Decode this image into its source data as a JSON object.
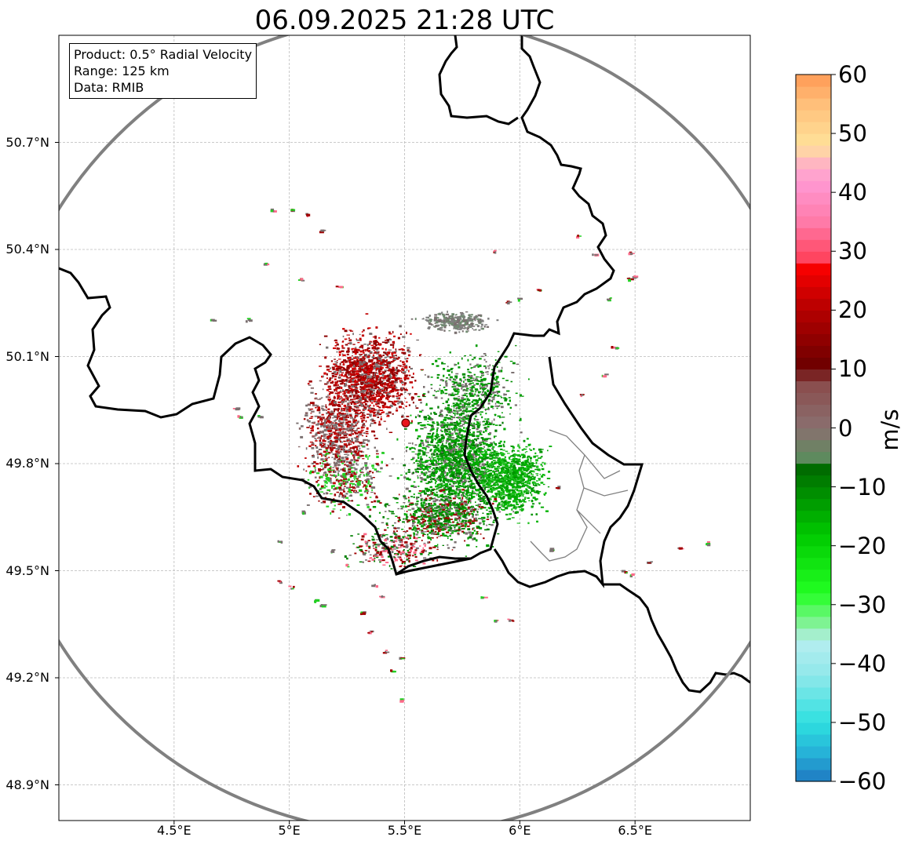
{
  "title": "06.09.2025 21:28 UTC",
  "info_box": {
    "product": "Product: 0.5° Radial Velocity",
    "range": "Range: 125 km",
    "data": "Data: RMIB"
  },
  "map": {
    "lon_range": [
      4.0,
      7.0
    ],
    "lat_range": [
      48.8,
      51.0
    ],
    "radar_site": {
      "lon": 5.505,
      "lat": 49.914
    },
    "range_km": 125,
    "y_ticks": [
      {
        "lat": 50.7,
        "label": "50.7°N"
      },
      {
        "lat": 50.4,
        "label": "50.4°N"
      },
      {
        "lat": 50.1,
        "label": "50.1°N"
      },
      {
        "lat": 49.8,
        "label": "49.8°N"
      },
      {
        "lat": 49.5,
        "label": "49.5°N"
      },
      {
        "lat": 49.2,
        "label": "49.2°N"
      },
      {
        "lat": 48.9,
        "label": "48.9°N"
      }
    ],
    "x_ticks": [
      {
        "lon": 4.5,
        "label": "4.5°E"
      },
      {
        "lon": 5.0,
        "label": "5°E"
      },
      {
        "lon": 5.5,
        "label": "5.5°E"
      },
      {
        "lon": 6.0,
        "label": "6°E"
      },
      {
        "lon": 6.5,
        "label": "6.5°E"
      }
    ],
    "grid": true,
    "colors": {
      "border": "#000000",
      "range_ring": "#808080",
      "grid": "#bbbbbb",
      "radar_site": "#e8141c"
    }
  },
  "colorbar": {
    "unit": "m/s",
    "min": -60,
    "max": 60,
    "ticks": [
      {
        "value": 60,
        "label": "60"
      },
      {
        "value": 50,
        "label": "50"
      },
      {
        "value": 40,
        "label": "40"
      },
      {
        "value": 30,
        "label": "30"
      },
      {
        "value": 20,
        "label": "20"
      },
      {
        "value": 10,
        "label": "10"
      },
      {
        "value": 0,
        "label": "0"
      },
      {
        "value": -10,
        "label": "−10"
      },
      {
        "value": -20,
        "label": "−20"
      },
      {
        "value": -30,
        "label": "−30"
      },
      {
        "value": -40,
        "label": "−40"
      },
      {
        "value": -50,
        "label": "−50"
      },
      {
        "value": -60,
        "label": "−60"
      }
    ],
    "stops": [
      {
        "value": -60,
        "color": "#1f78c1"
      },
      {
        "value": -55,
        "color": "#26b3d8"
      },
      {
        "value": -50,
        "color": "#2ee0e0"
      },
      {
        "value": -42,
        "color": "#8fe8ea"
      },
      {
        "value": -36,
        "color": "#b7eef0"
      },
      {
        "value": -34,
        "color": "#90f0a8"
      },
      {
        "value": -28,
        "color": "#22ff22"
      },
      {
        "value": -18,
        "color": "#00c800"
      },
      {
        "value": -6,
        "color": "#006400"
      },
      {
        "value": -5,
        "color": "#5e8a5e"
      },
      {
        "value": 0,
        "color": "#8a7070"
      },
      {
        "value": 8,
        "color": "#8a4a4a"
      },
      {
        "value": 10,
        "color": "#6a0000"
      },
      {
        "value": 20,
        "color": "#b40000"
      },
      {
        "value": 28,
        "color": "#ff0000"
      },
      {
        "value": 29,
        "color": "#ff4560"
      },
      {
        "value": 35,
        "color": "#ff7aa8"
      },
      {
        "value": 42,
        "color": "#ff9ad4"
      },
      {
        "value": 45,
        "color": "#ffb6c1"
      },
      {
        "value": 48,
        "color": "#ffe29a"
      },
      {
        "value": 55,
        "color": "#ffbf7a"
      },
      {
        "value": 60,
        "color": "#ff9a55"
      }
    ]
  }
}
